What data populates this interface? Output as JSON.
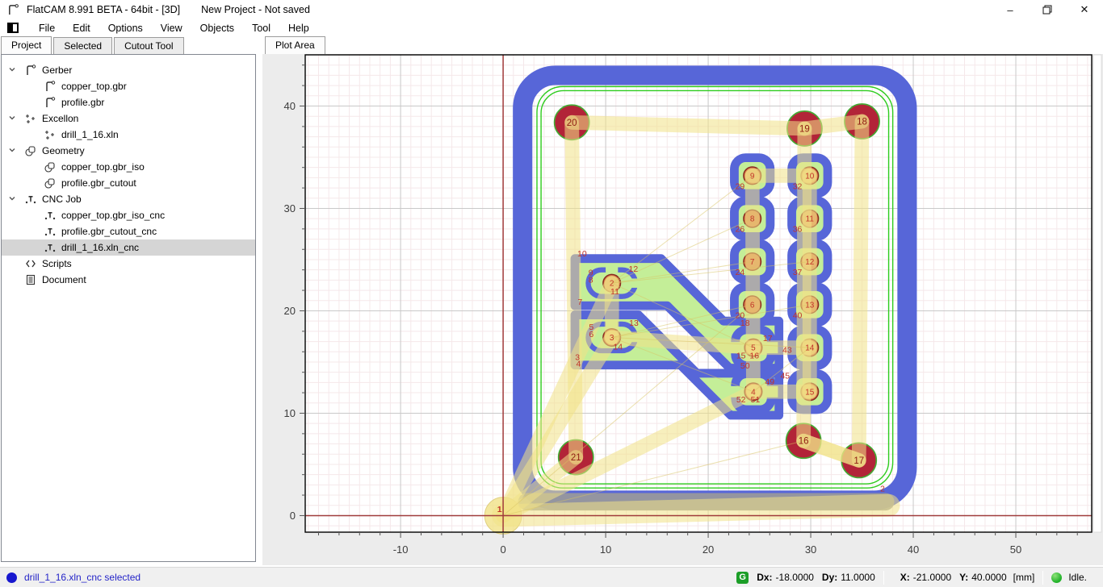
{
  "window": {
    "title": "FlatCAM 8.991 BETA - 64bit - [3D]",
    "subtitle": "New Project - Not saved",
    "controls": {
      "minimize": "–",
      "restore": "restore",
      "close": "✕"
    }
  },
  "menu": {
    "items": [
      "File",
      "Edit",
      "Options",
      "View",
      "Objects",
      "Tool",
      "Help"
    ]
  },
  "left_tabs": {
    "items": [
      "Project",
      "Selected",
      "Cutout Tool"
    ],
    "active": "Project"
  },
  "right_tabs": {
    "items": [
      "Plot Area"
    ],
    "active": "Plot Area"
  },
  "project_tree": {
    "items": [
      {
        "label": "Gerber",
        "icon": "gerber",
        "level": 0,
        "expanded": true
      },
      {
        "label": "copper_top.gbr",
        "icon": "gerber",
        "level": 1
      },
      {
        "label": "profile.gbr",
        "icon": "gerber",
        "level": 1
      },
      {
        "label": "Excellon",
        "icon": "excellon",
        "level": 0,
        "expanded": true
      },
      {
        "label": "drill_1_16.xln",
        "icon": "excellon",
        "level": 1
      },
      {
        "label": "Geometry",
        "icon": "geometry",
        "level": 0,
        "expanded": true
      },
      {
        "label": "copper_top.gbr_iso",
        "icon": "geometry",
        "level": 1
      },
      {
        "label": "profile.gbr_cutout",
        "icon": "geometry",
        "level": 1
      },
      {
        "label": "CNC Job",
        "icon": "cncjob",
        "level": 0,
        "expanded": true
      },
      {
        "label": "copper_top.gbr_iso_cnc",
        "icon": "cncjob",
        "level": 1
      },
      {
        "label": "profile.gbr_cutout_cnc",
        "icon": "cncjob",
        "level": 1
      },
      {
        "label": "drill_1_16.xln_cnc",
        "icon": "cncjob",
        "level": 1,
        "selected": true
      },
      {
        "label": "Scripts",
        "icon": "scripts",
        "level": 0
      },
      {
        "label": "Document",
        "icon": "document",
        "level": 0
      }
    ]
  },
  "status_bar": {
    "selection": "drill_1_16.xln_cnc selected",
    "g_icon": "G",
    "dx_label": "Dx:",
    "dx": "-18.0000",
    "dy_label": "Dy:",
    "dy": "11.0000",
    "x_label": "X:",
    "x": "-21.0000",
    "y_label": "Y:",
    "y": "40.0000",
    "units": "[mm]",
    "state": "Idle."
  },
  "chart_data": {
    "type": "cam-plot",
    "title": "Plot Area",
    "units": "mm",
    "x_range": [
      -19.3,
      57.4
    ],
    "y_range": [
      -1.63,
      45.0
    ],
    "x_major_ticks": [
      -10,
      0,
      10,
      20,
      30,
      40,
      50
    ],
    "y_major_ticks": [
      0,
      10,
      20,
      30,
      40
    ],
    "minor_tick_step": 2,
    "grid": {
      "major_color": "#c9c9c9",
      "minor_color": "#f5e8ea",
      "minor_step": 1
    },
    "axis_color": "#a03b3b",
    "colors": {
      "cnc_blue": "#5766d8",
      "copper_green": "#c4ee98",
      "profile_green": "#2ecc1e",
      "big_drill": "#b22438",
      "big_drill_ring": "#44aa33",
      "small_drill": "#d9834f",
      "small_drill_ring": "#8a2a20",
      "travel_yellow": "#f2e388",
      "travel_edge": "#d9c463",
      "slot_gray": "#9b9b9b",
      "annotation_red": "#c2342a",
      "drill_num_dark": "#8f1d12"
    },
    "board_cutout": {
      "x": 1.9,
      "y": 1.5,
      "w": 37.5,
      "h": 41.5,
      "r": 3.2,
      "stroke_mm": 1.9
    },
    "profile_rects": [
      {
        "x": 3.3,
        "y": 2.7,
        "w": 34.7,
        "h": 39.2,
        "r": 2.5
      },
      {
        "x": 3.7,
        "y": 3.1,
        "w": 33.9,
        "h": 38.4,
        "r": 2.2
      }
    ],
    "slot_bar": {
      "x1": 2.3,
      "y1": 1.35,
      "x2": 37.3,
      "y2": 1.35,
      "w_mm": 1.7
    },
    "copper_traces": [
      [
        [
          7.0,
          25.1
        ],
        [
          15.4,
          25.1
        ],
        [
          21.5,
          19.0
        ],
        [
          26.9,
          19.0
        ],
        [
          26.9,
          14.4
        ],
        [
          22.1,
          14.4
        ],
        [
          16.0,
          20.5
        ],
        [
          7.0,
          20.5
        ]
      ],
      [
        [
          7.0,
          19.6
        ],
        [
          13.2,
          19.6
        ],
        [
          18.9,
          13.9
        ],
        [
          26.9,
          13.9
        ],
        [
          26.9,
          9.8
        ],
        [
          22.2,
          9.8
        ],
        [
          17.3,
          14.7
        ],
        [
          7.0,
          14.7
        ]
      ]
    ],
    "oblong_pads": [
      {
        "cx": 10.6,
        "cy": 22.7
      },
      {
        "cx": 10.6,
        "cy": 17.4
      }
    ],
    "square_pads": [
      {
        "n": 9,
        "cx": 24.3,
        "cy": 33.2
      },
      {
        "n": 10,
        "cx": 29.9,
        "cy": 33.2
      },
      {
        "n": 8,
        "cx": 24.3,
        "cy": 29.0
      },
      {
        "n": 11,
        "cx": 29.9,
        "cy": 29.0
      },
      {
        "n": 7,
        "cx": 24.3,
        "cy": 24.8
      },
      {
        "n": 12,
        "cx": 29.9,
        "cy": 24.8
      },
      {
        "n": 6,
        "cx": 24.3,
        "cy": 20.6
      },
      {
        "n": 13,
        "cx": 29.9,
        "cy": 20.6
      },
      {
        "n": 5,
        "cx": 24.4,
        "cy": 16.4,
        "bracket": true
      },
      {
        "n": 14,
        "cx": 29.9,
        "cy": 16.4
      },
      {
        "n": 4,
        "cx": 24.4,
        "cy": 12.1,
        "bracket": true
      },
      {
        "n": 15,
        "cx": 29.9,
        "cy": 12.1
      }
    ],
    "big_drills": [
      {
        "n": 20,
        "x": 6.7,
        "y": 38.4
      },
      {
        "n": 19,
        "x": 29.4,
        "y": 37.8
      },
      {
        "n": 18,
        "x": 35.0,
        "y": 38.5
      },
      {
        "n": 21,
        "x": 7.1,
        "y": 5.7
      },
      {
        "n": 16,
        "x": 29.3,
        "y": 7.3
      },
      {
        "n": 17,
        "x": 34.7,
        "y": 5.4
      }
    ],
    "small_drills": [
      {
        "n": 2,
        "x": 10.6,
        "y": 22.7
      },
      {
        "n": 3,
        "x": 10.6,
        "y": 17.4
      },
      {
        "n": 4,
        "x": 24.4,
        "y": 12.1
      },
      {
        "n": 5,
        "x": 24.4,
        "y": 16.4
      },
      {
        "n": 6,
        "x": 24.3,
        "y": 20.6
      },
      {
        "n": 7,
        "x": 24.3,
        "y": 24.8
      },
      {
        "n": 8,
        "x": 24.3,
        "y": 29.0
      },
      {
        "n": 9,
        "x": 24.3,
        "y": 33.2
      },
      {
        "n": 10,
        "x": 29.9,
        "y": 33.2
      },
      {
        "n": 11,
        "x": 29.9,
        "y": 29.0
      },
      {
        "n": 12,
        "x": 29.9,
        "y": 24.8
      },
      {
        "n": 13,
        "x": 29.9,
        "y": 20.6
      },
      {
        "n": 14,
        "x": 29.9,
        "y": 16.4
      },
      {
        "n": 15,
        "x": 29.9,
        "y": 12.1
      }
    ],
    "origin_marker": {
      "x": 0,
      "y": 0,
      "r_mm": 1.8
    },
    "travel_thick": [
      {
        "p": [
          [
            0,
            0
          ],
          [
            10.6,
            22.7
          ]
        ]
      },
      {
        "p": [
          [
            0,
            0
          ],
          [
            10.6,
            17.4
          ]
        ]
      },
      {
        "p": [
          [
            0,
            0
          ],
          [
            7.1,
            5.7
          ]
        ]
      },
      {
        "p": [
          [
            0,
            0
          ],
          [
            24.4,
            12.1
          ]
        ]
      },
      {
        "p": [
          [
            0,
            0
          ],
          [
            37.6,
            1.0
          ]
        ],
        "w": 2.2
      },
      {
        "p": [
          [
            7.1,
            5.7
          ],
          [
            6.7,
            38.4
          ]
        ]
      },
      {
        "p": [
          [
            6.7,
            38.4
          ],
          [
            29.4,
            37.8
          ]
        ]
      },
      {
        "p": [
          [
            29.4,
            37.8
          ],
          [
            35.0,
            38.5
          ]
        ]
      },
      {
        "p": [
          [
            35.0,
            38.5
          ],
          [
            34.7,
            5.4
          ]
        ]
      },
      {
        "p": [
          [
            34.7,
            5.4
          ],
          [
            29.3,
            7.3
          ]
        ]
      },
      {
        "p": [
          [
            29.3,
            7.3
          ],
          [
            29.4,
            37.8
          ]
        ]
      },
      {
        "p": [
          [
            10.6,
            22.7
          ],
          [
            10.6,
            17.4
          ]
        ]
      },
      {
        "p": [
          [
            10.6,
            17.4
          ],
          [
            24.4,
            16.4
          ]
        ]
      },
      {
        "p": [
          [
            24.4,
            16.4
          ],
          [
            29.9,
            16.4
          ]
        ]
      },
      {
        "p": [
          [
            24.4,
            12.1
          ],
          [
            29.9,
            12.1
          ]
        ]
      },
      {
        "p": [
          [
            24.3,
            33.2
          ],
          [
            29.9,
            33.2
          ]
        ]
      },
      {
        "p": [
          [
            24.3,
            33.2
          ],
          [
            24.4,
            12.1
          ]
        ]
      },
      {
        "p": [
          [
            29.9,
            33.2
          ],
          [
            29.9,
            12.1
          ]
        ]
      },
      {
        "p": [
          [
            29.3,
            7.3
          ],
          [
            34.7,
            5.4
          ]
        ]
      }
    ],
    "travel_thin": [
      [
        [
          10.6,
          22.7
        ],
        [
          24.3,
          24.8
        ]
      ],
      [
        [
          10.6,
          22.7
        ],
        [
          24.3,
          29.0
        ]
      ],
      [
        [
          10.6,
          22.7
        ],
        [
          29.9,
          24.8
        ]
      ],
      [
        [
          10.6,
          22.7
        ],
        [
          24.4,
          16.4
        ]
      ],
      [
        [
          10.6,
          17.4
        ],
        [
          24.3,
          20.6
        ]
      ],
      [
        [
          10.6,
          17.4
        ],
        [
          24.4,
          12.1
        ]
      ],
      [
        [
          10.6,
          17.4
        ],
        [
          29.9,
          16.4
        ]
      ],
      [
        [
          0,
          0
        ],
        [
          29.3,
          7.3
        ]
      ],
      [
        [
          24.4,
          12.1
        ],
        [
          29.9,
          16.4
        ]
      ],
      [
        [
          10.6,
          22.7
        ],
        [
          24.3,
          33.2
        ]
      ],
      [
        [
          0,
          0
        ],
        [
          24.3,
          20.6
        ]
      ],
      [
        [
          10.6,
          17.4
        ],
        [
          29.9,
          20.6
        ]
      ]
    ],
    "annotations": [
      {
        "t": "1",
        "x": -0.35,
        "y": 0.35,
        "bold": true
      },
      {
        "t": "2",
        "x": 37.0,
        "y": 2.35
      },
      {
        "t": "10",
        "x": 7.7,
        "y": 25.3
      },
      {
        "t": "12",
        "x": 12.7,
        "y": 23.8
      },
      {
        "t": "9",
        "x": 8.55,
        "y": 23.45
      },
      {
        "t": "8",
        "x": 8.55,
        "y": 22.75
      },
      {
        "t": "11",
        "x": 10.9,
        "y": 21.6
      },
      {
        "t": "7",
        "x": 7.5,
        "y": 20.6
      },
      {
        "t": "13",
        "x": 12.75,
        "y": 18.55
      },
      {
        "t": "5",
        "x": 8.6,
        "y": 18.15
      },
      {
        "t": "6",
        "x": 8.6,
        "y": 17.45
      },
      {
        "t": "14",
        "x": 11.2,
        "y": 16.2
      },
      {
        "t": "3",
        "x": 7.25,
        "y": 15.2
      },
      {
        "t": "4",
        "x": 7.35,
        "y": 14.55
      },
      {
        "t": "29",
        "x": 23.1,
        "y": 31.9
      },
      {
        "t": "32",
        "x": 28.7,
        "y": 31.9
      },
      {
        "t": "26",
        "x": 23.1,
        "y": 27.7
      },
      {
        "t": "36",
        "x": 28.7,
        "y": 27.7
      },
      {
        "t": "24",
        "x": 23.1,
        "y": 23.5
      },
      {
        "t": "37",
        "x": 28.7,
        "y": 23.5
      },
      {
        "t": "20",
        "x": 23.1,
        "y": 19.3
      },
      {
        "t": "40",
        "x": 28.7,
        "y": 19.3
      },
      {
        "t": "18",
        "x": 23.6,
        "y": 18.55
      },
      {
        "t": "17",
        "x": 25.8,
        "y": 17.05
      },
      {
        "t": "15",
        "x": 23.2,
        "y": 15.35
      },
      {
        "t": "16",
        "x": 24.5,
        "y": 15.35
      },
      {
        "t": "50",
        "x": 23.6,
        "y": 14.35
      },
      {
        "t": "49",
        "x": 26.0,
        "y": 12.8
      },
      {
        "t": "52",
        "x": 23.2,
        "y": 11.05
      },
      {
        "t": "51",
        "x": 24.6,
        "y": 11.05
      },
      {
        "t": "43",
        "x": 27.7,
        "y": 15.9
      },
      {
        "t": "45",
        "x": 27.5,
        "y": 13.4
      }
    ]
  }
}
